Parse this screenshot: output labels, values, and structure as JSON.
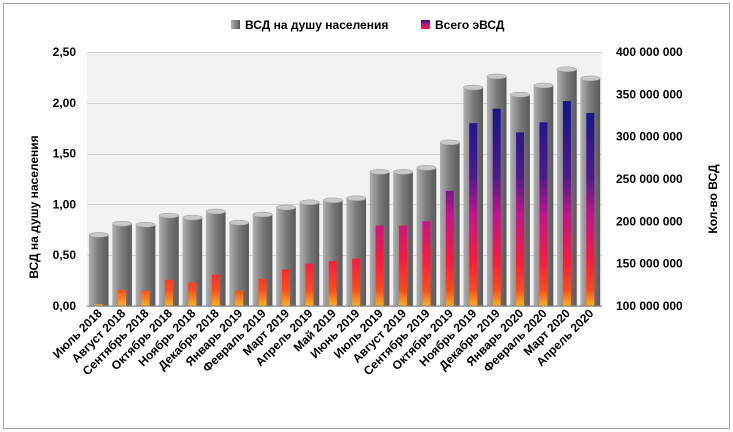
{
  "chart_data": {
    "type": "bar",
    "categories": [
      "Июль 2018",
      "Август 2018",
      "Сентябрь 2018",
      "Октябрь 2018",
      "Ноябрь 2018",
      "Декабрь 2018",
      "Январь 2019",
      "Февраль 2019",
      "Март 2019",
      "Апрель 2019",
      "Май 2019",
      "Июнь 2019",
      "Июль 2019",
      "Август 2019",
      "Сентябрь 2019",
      "Октябрь 2019",
      "Ноябрь 2019",
      "Декабрь 2019",
      "Январь 2020",
      "Февраль 2020",
      "Март 2020",
      "Апрель 2020"
    ],
    "series": [
      {
        "name": "ВСД на душу населения",
        "axis": "left",
        "values": [
          0.7,
          0.81,
          0.8,
          0.89,
          0.87,
          0.93,
          0.82,
          0.9,
          0.97,
          1.02,
          1.04,
          1.06,
          1.32,
          1.32,
          1.36,
          1.61,
          2.15,
          2.26,
          2.08,
          2.17,
          2.33,
          2.24
        ]
      },
      {
        "name": "Всего эВСД",
        "axis": "right",
        "values": [
          102000000,
          119000000,
          118000000,
          131000000,
          128000000,
          137000000,
          118000000,
          132000000,
          143000000,
          150000000,
          153000000,
          156000000,
          195000000,
          195000000,
          200000000,
          236000000,
          316000000,
          333000000,
          305000000,
          317000000,
          342000000,
          328000000
        ]
      }
    ],
    "left_axis": {
      "label": "ВСД на душу населения",
      "min": 0,
      "max": 2.5,
      "ticks": [
        "0,00",
        "0,50",
        "1,00",
        "1,50",
        "2,00",
        "2,50"
      ]
    },
    "right_axis": {
      "label": "Кол-во ВСД",
      "min": 100000000,
      "max": 400000000,
      "ticks": [
        "100 000 000",
        "150 000 000",
        "200 000 000",
        "250 000 000",
        "300 000 000",
        "350 000 000",
        "400 000 000"
      ]
    },
    "legend_position": "top",
    "grid": true,
    "colors": {
      "gray_bar": "#8c8c8c",
      "inner_top": "#1a1a80",
      "inner_mid": "#d1158f",
      "inner_low": "#ff2020",
      "inner_bottom": "#ffa020",
      "plot_bg": "#f2f2f2"
    }
  }
}
